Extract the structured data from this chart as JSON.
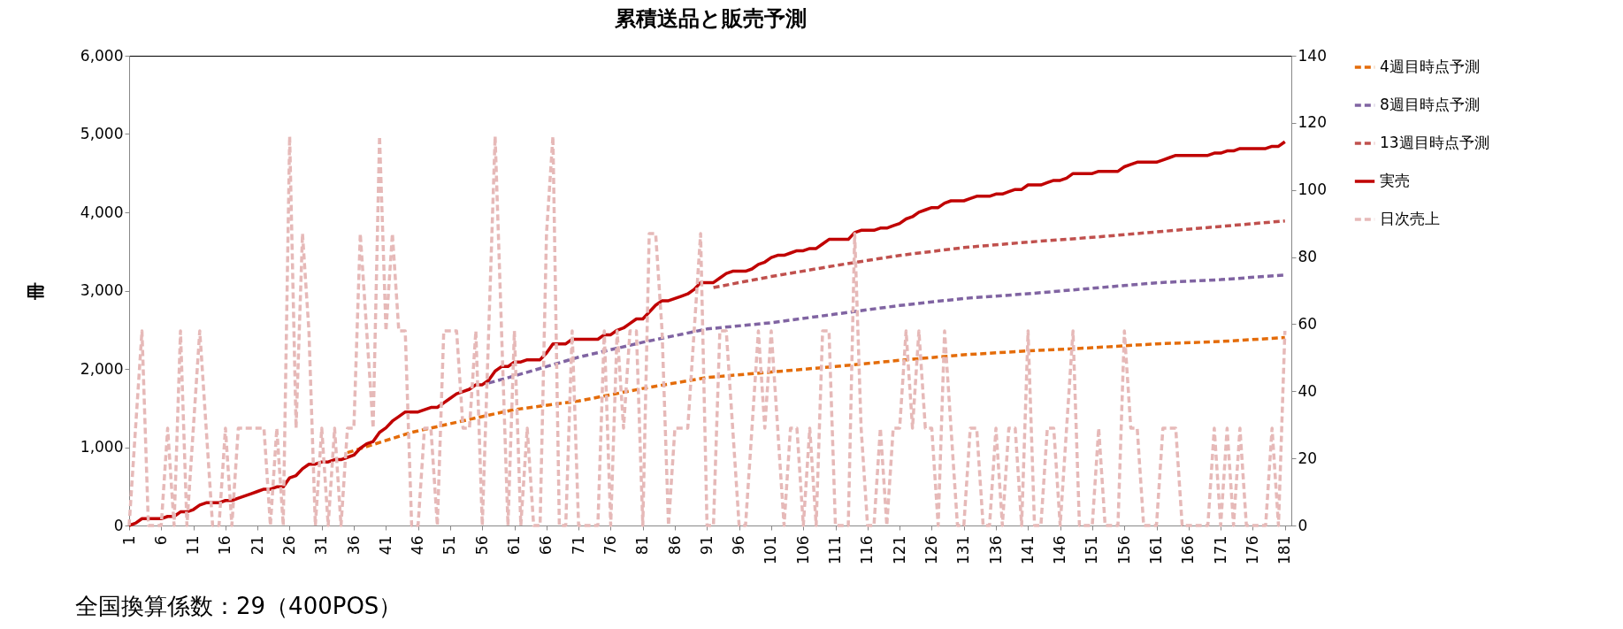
{
  "chart_data": {
    "type": "line",
    "title": "累積送品と販売予測",
    "ylabel": "冊",
    "annotations": [
      "全国換算係数：29（400POS）"
    ],
    "legend": "right",
    "grid": false,
    "xlim": [
      1,
      182
    ],
    "xticks": [
      1,
      6,
      11,
      16,
      21,
      26,
      31,
      36,
      41,
      46,
      51,
      56,
      61,
      66,
      71,
      76,
      81,
      86,
      91,
      96,
      101,
      106,
      111,
      116,
      121,
      126,
      131,
      136,
      141,
      146,
      151,
      156,
      161,
      166,
      171,
      176,
      181
    ],
    "ylim": [
      0,
      6000
    ],
    "yticks": [
      0,
      {
        "value": 1000,
        "label": "1,000"
      },
      {
        "value": 2000,
        "label": "2,000"
      },
      {
        "value": 3000,
        "label": "3,000"
      },
      {
        "value": 4000,
        "label": "4,000"
      },
      {
        "value": 5000,
        "label": "5,000"
      },
      {
        "value": 6000,
        "label": "6,000"
      }
    ],
    "y2lim": [
      0,
      140
    ],
    "y2ticks": [
      0,
      20,
      40,
      60,
      80,
      100,
      120,
      140
    ],
    "x": [
      1,
      2,
      3,
      4,
      5,
      6,
      7,
      8,
      9,
      10,
      11,
      12,
      13,
      14,
      15,
      16,
      17,
      18,
      19,
      20,
      21,
      22,
      23,
      24,
      25,
      26,
      27,
      28,
      29,
      30,
      31,
      32,
      33,
      34,
      35,
      36,
      37,
      38,
      39,
      40,
      41,
      42,
      43,
      44,
      45,
      46,
      47,
      48,
      49,
      50,
      51,
      52,
      53,
      54,
      55,
      56,
      57,
      58,
      59,
      60,
      61,
      62,
      63,
      64,
      65,
      66,
      67,
      68,
      69,
      70,
      71,
      72,
      73,
      74,
      75,
      76,
      77,
      78,
      79,
      80,
      81,
      82,
      83,
      84,
      85,
      86,
      87,
      88,
      89,
      90,
      91,
      92,
      93,
      94,
      95,
      96,
      97,
      98,
      99,
      100,
      101,
      102,
      103,
      104,
      105,
      106,
      107,
      108,
      109,
      110,
      111,
      112,
      113,
      114,
      115,
      116,
      117,
      118,
      119,
      120,
      121,
      122,
      123,
      124,
      125,
      126,
      127,
      128,
      129,
      130,
      131,
      132,
      133,
      134,
      135,
      136,
      137,
      138,
      139,
      140,
      141,
      142,
      143,
      144,
      145,
      146,
      147,
      148,
      149,
      150,
      151,
      152,
      153,
      154,
      155,
      156,
      157,
      158,
      159,
      160,
      161,
      162,
      163,
      164,
      165,
      166,
      167,
      168,
      169,
      170,
      171,
      172,
      173,
      174,
      175,
      176,
      177,
      178,
      179,
      180,
      181
    ],
    "series": [
      {
        "name": "4週目時点予測",
        "color": "#e46c0a",
        "line_style": "dashed",
        "x": [
          35,
          45,
          57,
          61,
          71,
          81,
          91,
          101,
          111,
          121,
          131,
          141,
          151,
          161,
          171,
          181
        ],
        "values": [
          930,
          1190,
          1410,
          1480,
          1590,
          1750,
          1890,
          1960,
          2030,
          2110,
          2180,
          2230,
          2270,
          2320,
          2350,
          2400
        ]
      },
      {
        "name": "8週目時点予測",
        "color": "#8064a2",
        "line_style": "dashed",
        "x": [
          57,
          61,
          71,
          81,
          91,
          101,
          111,
          121,
          131,
          141,
          151,
          161,
          171,
          181
        ],
        "values": [
          1820,
          1910,
          2150,
          2340,
          2510,
          2590,
          2700,
          2810,
          2900,
          2960,
          3030,
          3100,
          3140,
          3200
        ]
      },
      {
        "name": "13週目時点予測",
        "color": "#c0504d",
        "line_style": "dashed",
        "x": [
          92,
          101,
          111,
          121,
          131,
          141,
          151,
          161,
          171,
          181
        ],
        "values": [
          3040,
          3180,
          3320,
          3450,
          3550,
          3620,
          3680,
          3750,
          3820,
          3890
        ]
      },
      {
        "name": "実売",
        "color": "#c00000",
        "line_style": "solid",
        "values": [
          0,
          29,
          87,
          87,
          87,
          87,
          116,
          116,
          174,
          174,
          203,
          261,
          290,
          290,
          290,
          319,
          319,
          348,
          377,
          406,
          435,
          464,
          464,
          493,
          493,
          609,
          638,
          725,
          783,
          783,
          812,
          812,
          841,
          841,
          870,
          899,
          986,
          1044,
          1073,
          1189,
          1247,
          1334,
          1392,
          1450,
          1450,
          1450,
          1479,
          1508,
          1508,
          1566,
          1624,
          1682,
          1711,
          1740,
          1798,
          1798,
          1856,
          1972,
          2030,
          2030,
          2088,
          2088,
          2117,
          2117,
          2117,
          2204,
          2320,
          2320,
          2320,
          2378,
          2378,
          2378,
          2378,
          2378,
          2436,
          2436,
          2494,
          2523,
          2581,
          2639,
          2639,
          2726,
          2813,
          2871,
          2871,
          2900,
          2929,
          2958,
          3016,
          3103,
          3103,
          3103,
          3161,
          3219,
          3248,
          3248,
          3248,
          3277,
          3335,
          3364,
          3422,
          3451,
          3451,
          3480,
          3509,
          3509,
          3538,
          3538,
          3596,
          3654,
          3654,
          3654,
          3654,
          3741,
          3770,
          3770,
          3770,
          3799,
          3799,
          3828,
          3857,
          3915,
          3944,
          4002,
          4031,
          4060,
          4060,
          4118,
          4147,
          4147,
          4147,
          4176,
          4205,
          4205,
          4205,
          4234,
          4234,
          4263,
          4292,
          4292,
          4350,
          4350,
          4350,
          4379,
          4408,
          4408,
          4437,
          4495,
          4495,
          4495,
          4495,
          4524,
          4524,
          4524,
          4524,
          4582,
          4611,
          4640,
          4640,
          4640,
          4640,
          4669,
          4698,
          4727,
          4727,
          4727,
          4727,
          4727,
          4727,
          4756,
          4756,
          4785,
          4785,
          4814,
          4814,
          4814,
          4814,
          4814,
          4843,
          4843,
          4901
        ]
      },
      {
        "name": "日次売上",
        "color": "#e6b9b8",
        "line_style": "dashed",
        "axis": "y2",
        "values": [
          0,
          29,
          58,
          0,
          0,
          0,
          29,
          0,
          58,
          0,
          29,
          58,
          29,
          0,
          0,
          29,
          0,
          29,
          29,
          29,
          29,
          29,
          0,
          29,
          0,
          116,
          29,
          87,
          58,
          0,
          29,
          0,
          29,
          0,
          29,
          29,
          87,
          58,
          29,
          116,
          58,
          87,
          58,
          58,
          0,
          0,
          29,
          29,
          0,
          58,
          58,
          58,
          29,
          29,
          58,
          0,
          58,
          116,
          58,
          0,
          58,
          0,
          29,
          0,
          0,
          87,
          116,
          0,
          0,
          58,
          0,
          0,
          0,
          0,
          58,
          0,
          58,
          29,
          58,
          58,
          0,
          87,
          87,
          58,
          0,
          29,
          29,
          29,
          58,
          87,
          0,
          0,
          58,
          58,
          29,
          0,
          0,
          29,
          58,
          29,
          58,
          29,
          0,
          29,
          29,
          0,
          29,
          0,
          58,
          58,
          0,
          0,
          0,
          87,
          29,
          0,
          0,
          29,
          0,
          29,
          29,
          58,
          29,
          58,
          29,
          29,
          0,
          58,
          29,
          0,
          0,
          29,
          29,
          0,
          0,
          29,
          0,
          29,
          29,
          0,
          58,
          0,
          0,
          29,
          29,
          0,
          29,
          58,
          0,
          0,
          0,
          29,
          0,
          0,
          0,
          58,
          29,
          29,
          0,
          0,
          0,
          29,
          29,
          29,
          0,
          0,
          0,
          0,
          0,
          29,
          0,
          29,
          0,
          29,
          0,
          0,
          0,
          0,
          29,
          0,
          58
        ]
      }
    ]
  }
}
